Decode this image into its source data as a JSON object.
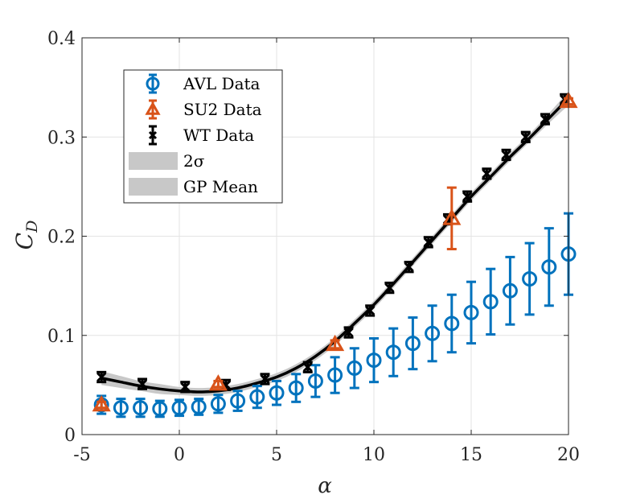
{
  "chart_data": {
    "type": "scatter",
    "xlabel": "α",
    "ylabel": "C",
    "ylabel_sub": "D",
    "xlim": [
      -5,
      20
    ],
    "ylim": [
      0,
      0.4
    ],
    "xticks": [
      "-5",
      "0",
      "5",
      "10",
      "15",
      "20"
    ],
    "yticks": [
      "0",
      "0.1",
      "0.2",
      "0.3",
      "0.4"
    ],
    "grid": true,
    "legend_position": "top-left",
    "legend": [
      {
        "label": "AVL Data",
        "marker": "circle",
        "color": "#0072BD"
      },
      {
        "label": "SU2 Data",
        "marker": "triangle",
        "color": "#D95319"
      },
      {
        "label": "WT Data",
        "marker": "x",
        "color": "#000000"
      },
      {
        "label": "2σ",
        "marker": "band",
        "color": "#c8c8c8"
      },
      {
        "label": "GP Mean",
        "marker": "band",
        "color": "#c8c8c8"
      }
    ],
    "series": [
      {
        "name": "AVL Data",
        "marker": "circle",
        "color": "#0072BD",
        "x": [
          -4,
          -3,
          -2,
          -1,
          0,
          1,
          2,
          3,
          4,
          5,
          6,
          7,
          8,
          9,
          10,
          11,
          12,
          13,
          14,
          15,
          16,
          17,
          18,
          19,
          20
        ],
        "y": [
          0.03,
          0.027,
          0.027,
          0.026,
          0.027,
          0.028,
          0.031,
          0.034,
          0.038,
          0.042,
          0.047,
          0.054,
          0.06,
          0.067,
          0.075,
          0.083,
          0.092,
          0.102,
          0.112,
          0.123,
          0.134,
          0.145,
          0.157,
          0.169,
          0.182
        ],
        "err": [
          0.009,
          0.009,
          0.009,
          0.008,
          0.008,
          0.008,
          0.009,
          0.01,
          0.011,
          0.012,
          0.014,
          0.016,
          0.018,
          0.02,
          0.022,
          0.024,
          0.026,
          0.028,
          0.029,
          0.031,
          0.033,
          0.034,
          0.036,
          0.039,
          0.041
        ]
      },
      {
        "name": "SU2 Data",
        "marker": "triangle",
        "color": "#D95319",
        "x": [
          -4,
          2,
          8,
          14,
          20
        ],
        "y": [
          0.03,
          0.051,
          0.091,
          0.218,
          0.336
        ],
        "err": [
          0.003,
          0.003,
          0.004,
          0.031,
          0.003
        ]
      },
      {
        "name": "WT Data",
        "marker": "x",
        "color": "#000000",
        "x": [
          -4,
          -1.9,
          0.3,
          2.4,
          4.4,
          6.6,
          8.7,
          9.8,
          10.8,
          11.8,
          12.8,
          13.8,
          14.8,
          15.8,
          16.8,
          17.8,
          18.8,
          19.8
        ],
        "y": [
          0.058,
          0.051,
          0.048,
          0.05,
          0.056,
          0.068,
          0.103,
          0.125,
          0.148,
          0.169,
          0.194,
          0.217,
          0.24,
          0.263,
          0.282,
          0.3,
          0.318,
          0.338
        ],
        "err": [
          0.005,
          0.005,
          0.005,
          0.005,
          0.005,
          0.005,
          0.005,
          0.005,
          0.005,
          0.005,
          0.005,
          0.005,
          0.005,
          0.005,
          0.005,
          0.005,
          0.005,
          0.005
        ]
      },
      {
        "name": "GP Mean",
        "type": "line",
        "color": "#000000",
        "x": [
          -4,
          -3,
          -2,
          -1,
          0,
          1,
          2,
          3,
          4,
          5,
          6,
          7,
          8,
          9,
          10,
          11,
          12,
          13,
          14,
          15,
          16,
          17,
          18,
          19,
          20
        ],
        "y": [
          0.057,
          0.053,
          0.049,
          0.046,
          0.044,
          0.043,
          0.044,
          0.047,
          0.052,
          0.058,
          0.067,
          0.079,
          0.094,
          0.112,
          0.131,
          0.152,
          0.174,
          0.196,
          0.218,
          0.24,
          0.26,
          0.28,
          0.299,
          0.319,
          0.339
        ],
        "band": [
          0.007,
          0.006,
          0.005,
          0.005,
          0.004,
          0.004,
          0.004,
          0.004,
          0.004,
          0.004,
          0.004,
          0.004,
          0.004,
          0.004,
          0.004,
          0.004,
          0.004,
          0.004,
          0.004,
          0.004,
          0.004,
          0.004,
          0.004,
          0.005,
          0.007
        ]
      }
    ]
  }
}
